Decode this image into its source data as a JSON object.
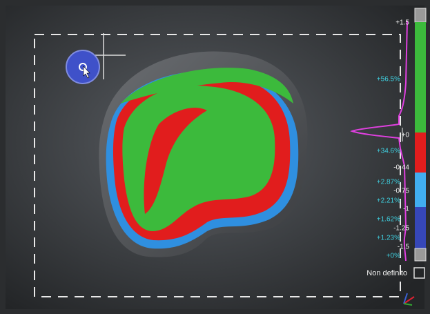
{
  "color_scale": {
    "values": [
      "+1.5",
      "+0",
      "-0.44",
      "-0.75",
      "-1",
      "-1.25",
      "-1.5"
    ],
    "percentages": [
      "+56.5%",
      "+34.6%",
      "+2.87%",
      "+2.21%",
      "+1.62%",
      "+1.23%",
      "+0%"
    ]
  },
  "checkbox_label": "Non definito"
}
